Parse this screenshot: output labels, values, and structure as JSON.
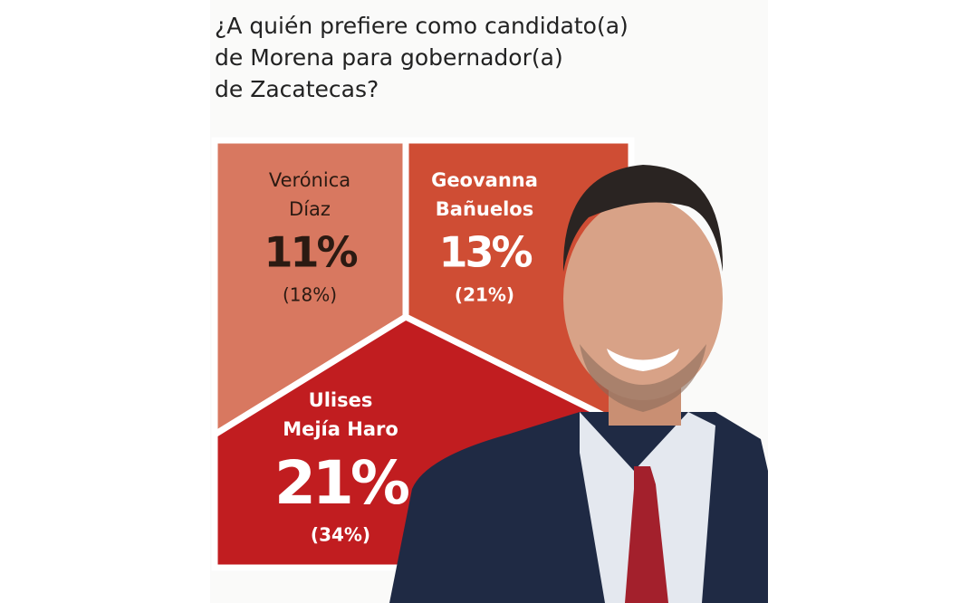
{
  "header": {
    "title_lines": [
      "¿A quién prefiere como candidato(a)",
      "de Morena para gobernador(a)",
      "de Zacatecas?"
    ]
  },
  "candidates": [
    {
      "name_lines": [
        "Verónica",
        "Díaz"
      ],
      "share": "11%",
      "effective": "(18%)"
    },
    {
      "name_lines": [
        "Geovanna",
        "Bañuelos"
      ],
      "share": "13%",
      "effective": "(21%)"
    },
    {
      "name_lines": [
        "Ulises",
        "Mejía Haro"
      ],
      "share": "21%",
      "effective": "(34%)"
    }
  ]
}
